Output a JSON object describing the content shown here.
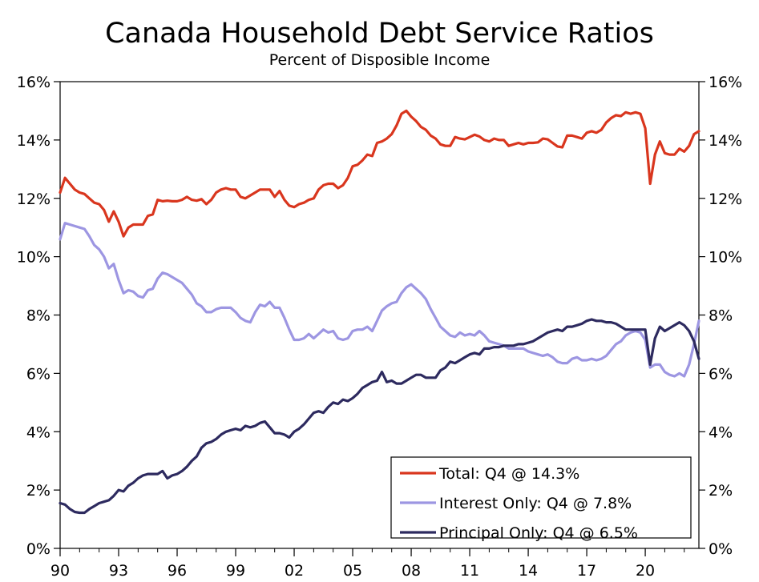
{
  "chart_data": {
    "type": "line",
    "title": "Canada Household Debt Service Ratios",
    "subtitle": "Percent of Disposible Income",
    "xlabel": "",
    "ylabel": "",
    "xlim": [
      1990.0,
      2022.75
    ],
    "ylim": [
      0,
      16
    ],
    "x_ticks": [
      "90",
      "93",
      "96",
      "99",
      "02",
      "05",
      "08",
      "11",
      "14",
      "17",
      "20"
    ],
    "x_tick_values": [
      1990,
      1993,
      1996,
      1999,
      2002,
      2005,
      2008,
      2011,
      2014,
      2017,
      2020
    ],
    "y_ticks_left": [
      "0%",
      "2%",
      "4%",
      "6%",
      "8%",
      "10%",
      "12%",
      "14%",
      "16%"
    ],
    "y_ticks_right": [
      "0%",
      "2%",
      "4%",
      "6%",
      "8%",
      "10%",
      "12%",
      "14%",
      "16%"
    ],
    "y_tick_values": [
      0,
      2,
      4,
      6,
      8,
      10,
      12,
      14,
      16
    ],
    "grid": false,
    "legend_position": "bottom-right",
    "x_start": 1990.0,
    "x_step": 0.25,
    "series": [
      {
        "name": "Total: Q4 @ 14.3%",
        "color": "#d9361e",
        "values": [
          12.2,
          12.7,
          12.5,
          12.3,
          12.2,
          12.15,
          12.0,
          11.85,
          11.8,
          11.6,
          11.2,
          11.55,
          11.2,
          10.7,
          11.0,
          11.1,
          11.1,
          11.1,
          11.4,
          11.45,
          11.95,
          11.9,
          11.92,
          11.9,
          11.9,
          11.95,
          12.05,
          11.95,
          11.92,
          11.97,
          11.8,
          11.95,
          12.2,
          12.3,
          12.35,
          12.3,
          12.3,
          12.05,
          12.0,
          12.1,
          12.2,
          12.3,
          12.3,
          12.3,
          12.05,
          12.25,
          11.95,
          11.75,
          11.7,
          11.8,
          11.85,
          11.95,
          12.0,
          12.3,
          12.45,
          12.5,
          12.5,
          12.35,
          12.45,
          12.7,
          13.1,
          13.15,
          13.3,
          13.5,
          13.45,
          13.9,
          13.95,
          14.05,
          14.2,
          14.5,
          14.9,
          15.0,
          14.8,
          14.65,
          14.45,
          14.35,
          14.15,
          14.05,
          13.85,
          13.8,
          13.8,
          14.1,
          14.05,
          14.02,
          14.1,
          14.18,
          14.12,
          14.0,
          13.95,
          14.05,
          14.0,
          14.0,
          13.8,
          13.85,
          13.9,
          13.85,
          13.9,
          13.9,
          13.92,
          14.05,
          14.02,
          13.9,
          13.78,
          13.75,
          14.15,
          14.15,
          14.1,
          14.05,
          14.25,
          14.3,
          14.25,
          14.35,
          14.6,
          14.75,
          14.85,
          14.82,
          14.95,
          14.9,
          14.95,
          14.9,
          14.4,
          12.5,
          13.5,
          13.95,
          13.55,
          13.5,
          13.5,
          13.7,
          13.6,
          13.8,
          14.2,
          14.3
        ]
      },
      {
        "name": "Interest Only: Q4 @ 7.8%",
        "color": "#9d96e2",
        "values": [
          10.6,
          11.15,
          11.1,
          11.05,
          11.0,
          10.95,
          10.7,
          10.4,
          10.25,
          10.0,
          9.6,
          9.75,
          9.2,
          8.75,
          8.85,
          8.8,
          8.65,
          8.6,
          8.85,
          8.9,
          9.25,
          9.45,
          9.4,
          9.3,
          9.2,
          9.1,
          8.9,
          8.7,
          8.4,
          8.3,
          8.1,
          8.1,
          8.2,
          8.25,
          8.25,
          8.25,
          8.1,
          7.9,
          7.8,
          7.75,
          8.1,
          8.35,
          8.3,
          8.45,
          8.25,
          8.25,
          7.9,
          7.5,
          7.15,
          7.15,
          7.2,
          7.35,
          7.2,
          7.35,
          7.5,
          7.4,
          7.45,
          7.2,
          7.15,
          7.2,
          7.45,
          7.5,
          7.5,
          7.6,
          7.45,
          7.8,
          8.15,
          8.3,
          8.4,
          8.45,
          8.75,
          8.95,
          9.05,
          8.9,
          8.75,
          8.55,
          8.2,
          7.9,
          7.6,
          7.45,
          7.3,
          7.25,
          7.4,
          7.3,
          7.35,
          7.3,
          7.45,
          7.3,
          7.1,
          7.05,
          7.0,
          6.95,
          6.85,
          6.85,
          6.85,
          6.85,
          6.75,
          6.7,
          6.65,
          6.6,
          6.65,
          6.55,
          6.4,
          6.35,
          6.35,
          6.5,
          6.55,
          6.45,
          6.45,
          6.5,
          6.45,
          6.5,
          6.6,
          6.8,
          7.0,
          7.1,
          7.3,
          7.4,
          7.45,
          7.4,
          7.15,
          6.2,
          6.3,
          6.3,
          6.05,
          5.95,
          5.9,
          6.0,
          5.9,
          6.3,
          7.0,
          7.8
        ]
      },
      {
        "name": "Principal Only: Q4 @ 6.5%",
        "color": "#2d2a5f",
        "values": [
          1.55,
          1.5,
          1.35,
          1.25,
          1.22,
          1.22,
          1.35,
          1.45,
          1.55,
          1.6,
          1.65,
          1.8,
          2.0,
          1.95,
          2.15,
          2.25,
          2.4,
          2.5,
          2.55,
          2.55,
          2.55,
          2.65,
          2.4,
          2.5,
          2.55,
          2.65,
          2.8,
          3.0,
          3.15,
          3.45,
          3.6,
          3.65,
          3.75,
          3.9,
          4.0,
          4.05,
          4.1,
          4.05,
          4.2,
          4.15,
          4.2,
          4.3,
          4.35,
          4.15,
          3.95,
          3.95,
          3.9,
          3.8,
          4.0,
          4.1,
          4.25,
          4.45,
          4.65,
          4.7,
          4.65,
          4.85,
          5.0,
          4.95,
          5.1,
          5.05,
          5.15,
          5.3,
          5.5,
          5.6,
          5.7,
          5.75,
          6.05,
          5.7,
          5.75,
          5.65,
          5.65,
          5.75,
          5.85,
          5.95,
          5.95,
          5.85,
          5.85,
          5.85,
          6.1,
          6.2,
          6.4,
          6.35,
          6.45,
          6.55,
          6.65,
          6.7,
          6.65,
          6.85,
          6.85,
          6.9,
          6.9,
          6.95,
          6.95,
          6.95,
          7.0,
          7.0,
          7.05,
          7.1,
          7.2,
          7.3,
          7.4,
          7.45,
          7.5,
          7.45,
          7.6,
          7.6,
          7.65,
          7.7,
          7.8,
          7.85,
          7.8,
          7.8,
          7.75,
          7.75,
          7.7,
          7.6,
          7.5,
          7.5,
          7.5,
          7.5,
          7.5,
          6.3,
          7.2,
          7.6,
          7.45,
          7.55,
          7.65,
          7.75,
          7.65,
          7.45,
          7.1,
          6.5
        ]
      }
    ]
  }
}
